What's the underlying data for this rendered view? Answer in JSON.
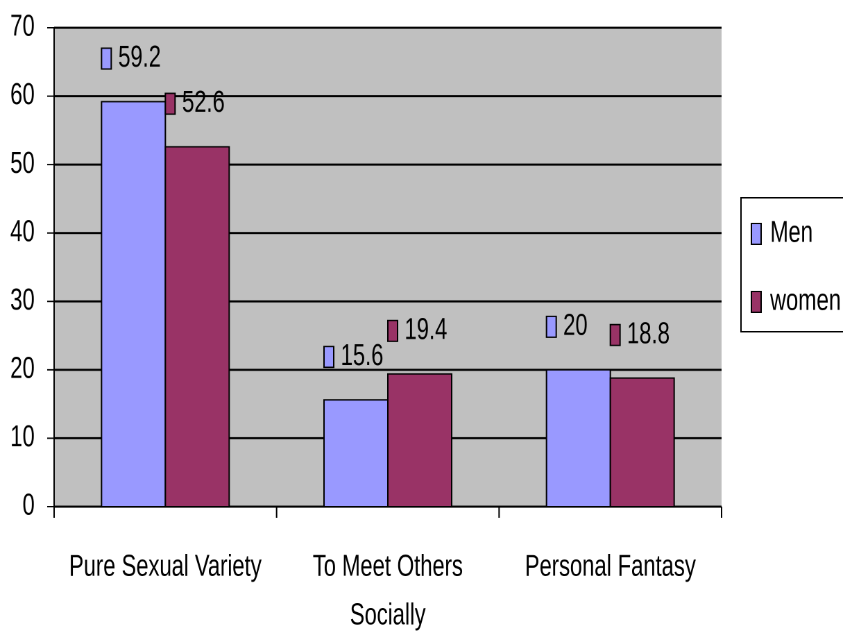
{
  "chart_data": {
    "type": "bar",
    "categories": [
      "Pure Sexual Variety",
      "To Meet Others Socially",
      "Personal Fantasy"
    ],
    "series": [
      {
        "name": "Men",
        "color": "#9999ff",
        "values": [
          59.2,
          15.6,
          20
        ]
      },
      {
        "name": "women",
        "color": "#993366",
        "values": [
          52.6,
          19.4,
          18.8
        ]
      }
    ],
    "ylim": [
      0,
      70
    ],
    "yticks": [
      0,
      10,
      20,
      30,
      40,
      50,
      60,
      70
    ],
    "grid": true,
    "legend": "right"
  }
}
